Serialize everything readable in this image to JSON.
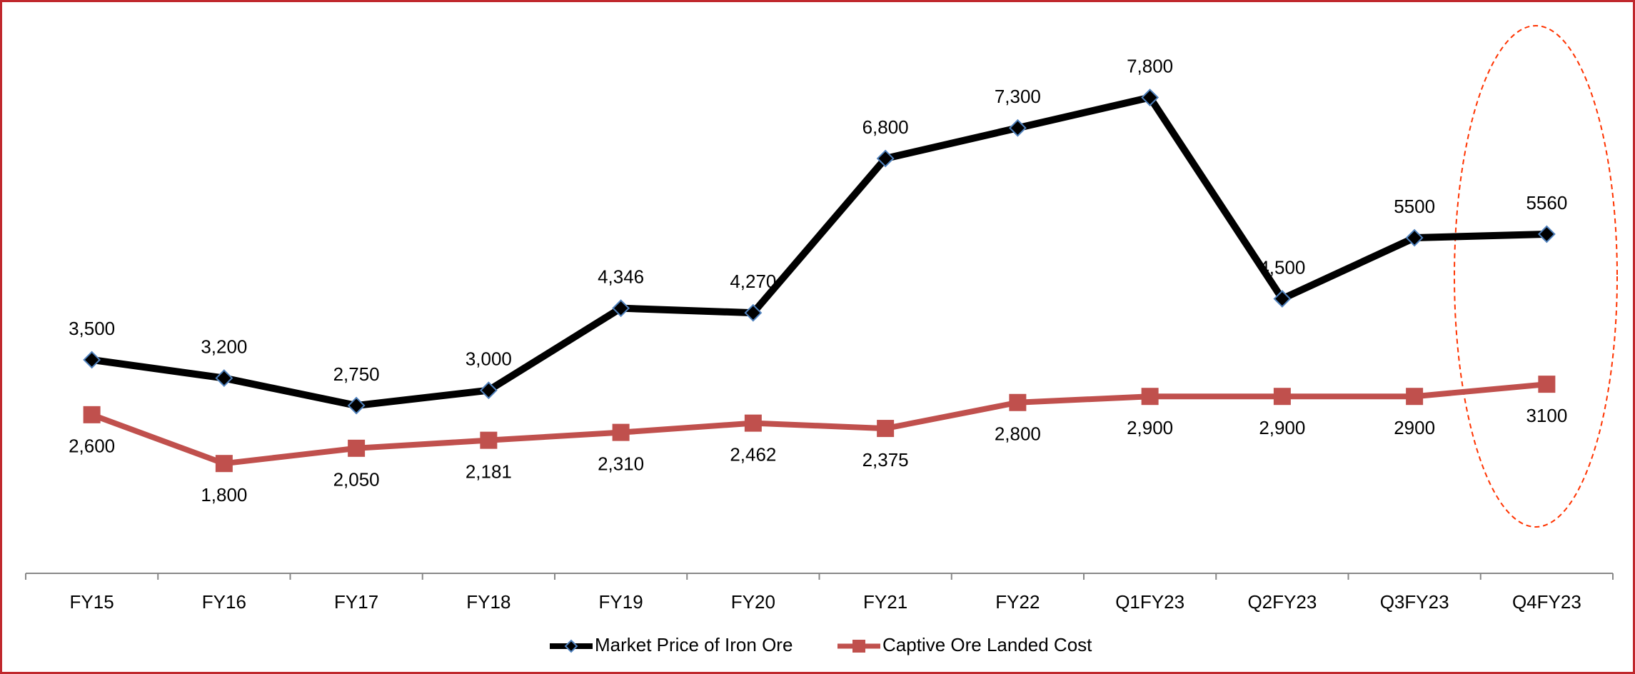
{
  "chart_data": {
    "type": "line",
    "categories": [
      "FY15",
      "FY16",
      "FY17",
      "FY18",
      "FY19",
      "FY20",
      "FY21",
      "FY22",
      "Q1FY23",
      "Q2FY23",
      "Q3FY23",
      "Q4FY23"
    ],
    "series": [
      {
        "name": "Market Price of Iron Ore",
        "color": "#000000",
        "marker": "diamond",
        "values": [
          3500,
          3200,
          2750,
          3000,
          4346,
          4270,
          6800,
          7300,
          7800,
          4500,
          5500,
          5560
        ],
        "value_labels": [
          "3,500",
          "3,200",
          "2,750",
          "3,000",
          "4,346",
          "4,270",
          "6,800",
          "7,300",
          "7,800",
          "4,500",
          "5500",
          "5560"
        ]
      },
      {
        "name": "Captive Ore Landed Cost",
        "color": "#c0504d",
        "marker": "square",
        "values": [
          2600,
          1800,
          2050,
          2181,
          2310,
          2462,
          2375,
          2800,
          2900,
          2900,
          2900,
          3100
        ],
        "value_labels": [
          "2,600",
          "1,800",
          "2,050",
          "2,181",
          "2,310",
          "2,462",
          "2,375",
          "2,800",
          "2,900",
          "2,900",
          "2900",
          "3100"
        ]
      }
    ],
    "ylim": [
      0,
      9000
    ],
    "legend": "bottom"
  }
}
